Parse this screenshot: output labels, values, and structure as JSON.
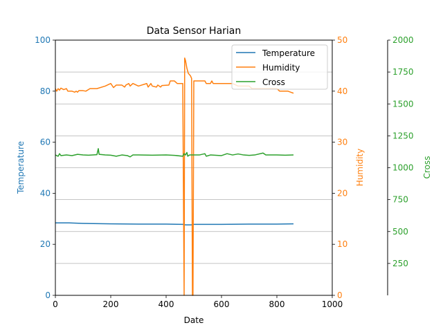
{
  "chart_data": {
    "type": "line",
    "title": "Data Sensor Harian",
    "xlabel": "Date",
    "xlim": [
      0,
      1000
    ],
    "x_ticks": [
      "0",
      "200",
      "400",
      "600",
      "800",
      "1000"
    ],
    "grid": "horizontal lines (right axis ticks)",
    "legend_position": "top-right",
    "axes": [
      {
        "id": "left",
        "label": "Temperature",
        "color": "#1f77b4",
        "ylim": [
          0,
          100
        ],
        "ticks": [
          "0",
          "20",
          "40",
          "60",
          "80",
          "100"
        ]
      },
      {
        "id": "right",
        "label": "Humidity",
        "color": "#ff7f0e",
        "ylim": [
          0,
          50
        ],
        "ticks": [
          "0",
          "10",
          "20",
          "30",
          "40",
          "50"
        ]
      },
      {
        "id": "right2",
        "label": "Cross",
        "color": "#2ca02c",
        "ylim": [
          0,
          2000
        ],
        "ticks": [
          "250",
          "500",
          "750",
          "1000",
          "1250",
          "1500",
          "1750",
          "2000"
        ]
      }
    ],
    "series": [
      {
        "name": "Temperature",
        "axis": "left",
        "color": "#1f77b4",
        "points": [
          [
            0,
            28.4
          ],
          [
            50,
            28.4
          ],
          [
            100,
            28.2
          ],
          [
            200,
            28.0
          ],
          [
            300,
            27.9
          ],
          [
            400,
            27.9
          ],
          [
            460,
            27.8
          ],
          [
            470,
            27.6
          ],
          [
            490,
            27.6
          ],
          [
            500,
            27.8
          ],
          [
            600,
            27.8
          ],
          [
            700,
            27.9
          ],
          [
            800,
            27.9
          ],
          [
            860,
            28.0
          ]
        ]
      },
      {
        "name": "Humidity",
        "axis": "right",
        "color": "#ff7f0e",
        "points": [
          [
            0,
            40.5
          ],
          [
            5,
            40.0
          ],
          [
            10,
            40.5
          ],
          [
            15,
            40.2
          ],
          [
            20,
            40.6
          ],
          [
            30,
            40.3
          ],
          [
            40,
            40.5
          ],
          [
            45,
            40.0
          ],
          [
            60,
            40.0
          ],
          [
            70,
            39.8
          ],
          [
            75,
            40.0
          ],
          [
            80,
            39.8
          ],
          [
            85,
            40.1
          ],
          [
            100,
            40.1
          ],
          [
            110,
            40.0
          ],
          [
            125,
            40.5
          ],
          [
            150,
            40.5
          ],
          [
            180,
            41.0
          ],
          [
            200,
            41.5
          ],
          [
            210,
            40.7
          ],
          [
            220,
            41.2
          ],
          [
            240,
            41.2
          ],
          [
            250,
            40.8
          ],
          [
            255,
            41.2
          ],
          [
            265,
            41.5
          ],
          [
            270,
            41.0
          ],
          [
            280,
            41.5
          ],
          [
            300,
            41.0
          ],
          [
            330,
            41.5
          ],
          [
            335,
            40.8
          ],
          [
            345,
            41.5
          ],
          [
            350,
            41.0
          ],
          [
            365,
            40.8
          ],
          [
            370,
            41.2
          ],
          [
            380,
            40.8
          ],
          [
            385,
            41.1
          ],
          [
            410,
            41.2
          ],
          [
            415,
            42.0
          ],
          [
            430,
            42.0
          ],
          [
            440,
            41.5
          ],
          [
            460,
            41.5
          ],
          [
            465,
            0.0
          ],
          [
            467,
            46.5
          ],
          [
            470,
            46.0
          ],
          [
            475,
            44.5
          ],
          [
            480,
            43.5
          ],
          [
            488,
            43.0
          ],
          [
            492,
            42.5
          ],
          [
            495,
            0.0
          ],
          [
            497,
            0.0
          ],
          [
            500,
            42.0
          ],
          [
            540,
            42.0
          ],
          [
            545,
            41.5
          ],
          [
            560,
            41.5
          ],
          [
            565,
            42.0
          ],
          [
            570,
            41.5
          ],
          [
            640,
            41.5
          ],
          [
            660,
            41.0
          ],
          [
            700,
            41.0
          ],
          [
            710,
            40.5
          ],
          [
            800,
            40.5
          ],
          [
            810,
            40.0
          ],
          [
            840,
            40.0
          ],
          [
            850,
            39.8
          ],
          [
            860,
            39.6
          ]
        ]
      },
      {
        "name": "Cross",
        "axis": "right2",
        "color": "#2ca02c",
        "points": [
          [
            0,
            1100
          ],
          [
            10,
            1090
          ],
          [
            15,
            1110
          ],
          [
            20,
            1095
          ],
          [
            40,
            1100
          ],
          [
            60,
            1095
          ],
          [
            80,
            1105
          ],
          [
            100,
            1100
          ],
          [
            120,
            1098
          ],
          [
            150,
            1102
          ],
          [
            155,
            1150
          ],
          [
            158,
            1105
          ],
          [
            180,
            1100
          ],
          [
            200,
            1098
          ],
          [
            220,
            1090
          ],
          [
            240,
            1100
          ],
          [
            260,
            1095
          ],
          [
            270,
            1085
          ],
          [
            280,
            1100
          ],
          [
            300,
            1100
          ],
          [
            350,
            1098
          ],
          [
            400,
            1100
          ],
          [
            430,
            1097
          ],
          [
            460,
            1090
          ],
          [
            465,
            1110
          ],
          [
            470,
            1100
          ],
          [
            475,
            1120
          ],
          [
            478,
            1090
          ],
          [
            485,
            1100
          ],
          [
            520,
            1100
          ],
          [
            540,
            1110
          ],
          [
            545,
            1090
          ],
          [
            560,
            1100
          ],
          [
            600,
            1095
          ],
          [
            620,
            1110
          ],
          [
            640,
            1100
          ],
          [
            660,
            1108
          ],
          [
            680,
            1100
          ],
          [
            700,
            1097
          ],
          [
            720,
            1100
          ],
          [
            750,
            1115
          ],
          [
            760,
            1100
          ],
          [
            800,
            1100
          ],
          [
            830,
            1098
          ],
          [
            860,
            1100
          ]
        ]
      }
    ]
  }
}
